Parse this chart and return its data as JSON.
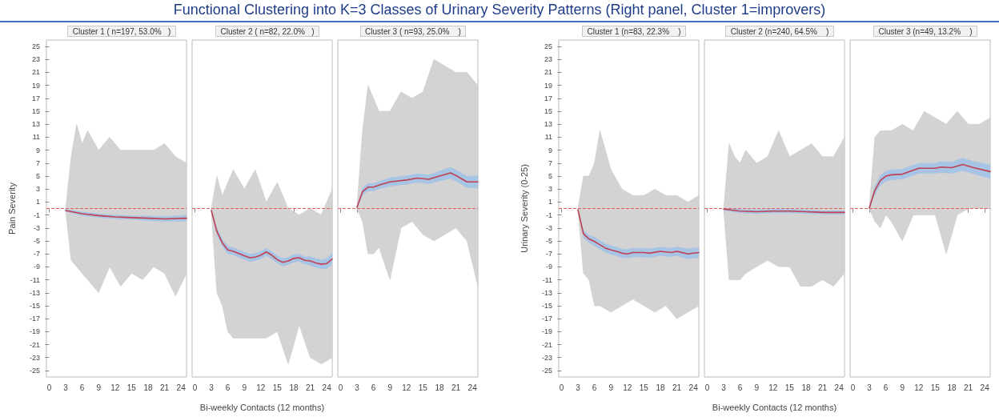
{
  "chart_data": [
    {
      "type": "line",
      "title": "Cluster 1 ( n=197, 53.0%   )",
      "ylabel": "Pain Severity",
      "annotations": [
        "Functional Clustering into K=3 Classes of Urinary Severity Patterns (Right panel, Cluster 1=improvers)"
      ],
      "xlim": [
        -0.5,
        25
      ],
      "xticks": [
        0,
        3,
        6,
        9,
        12,
        15,
        18,
        21,
        24
      ],
      "ylim": [
        -26,
        26
      ],
      "yticks": [
        -25,
        -23,
        -21,
        -19,
        -17,
        -15,
        -13,
        -11,
        -9,
        -7,
        -5,
        -3,
        -1,
        1,
        3,
        5,
        7,
        9,
        11,
        13,
        15,
        17,
        19,
        21,
        23,
        25
      ],
      "grid": false,
      "marker": "none",
      "line_style": "solid",
      "ref_lines": [
        {
          "axis": "y",
          "value": 0,
          "color": "#e06060",
          "line_style": "dashed"
        }
      ],
      "series": [
        {
          "color": "#d3d3d3",
          "x": [
            3,
            4,
            5,
            6,
            7,
            9,
            11,
            13,
            15,
            17,
            19,
            21,
            23,
            25
          ],
          "values": [
            null,
            null,
            null,
            null,
            null,
            null,
            null,
            null,
            null,
            null,
            null,
            null,
            null,
            null
          ],
          "lower": [
            -0.5,
            -8,
            -9,
            -10,
            -11,
            -13,
            -9,
            -12,
            -10,
            -11,
            -9,
            -10,
            -13.5,
            -10
          ],
          "upper": [
            0,
            8,
            13,
            10,
            12,
            9,
            11,
            9,
            9,
            9,
            9,
            10,
            8,
            7
          ]
        },
        {
          "color": "#c0404f",
          "x": [
            3,
            6,
            9,
            12,
            15,
            18,
            21,
            25
          ],
          "values": [
            -0.3,
            -0.8,
            -1.1,
            -1.3,
            -1.4,
            -1.5,
            -1.6,
            -1.5
          ],
          "lower": [
            -0.5,
            -1.1,
            -1.4,
            -1.6,
            -1.7,
            -1.9,
            -2.0,
            -2.0
          ],
          "upper": [
            -0.1,
            -0.5,
            -0.8,
            -1.0,
            -1.1,
            -1.1,
            -1.2,
            -1.0
          ]
        }
      ]
    },
    {
      "type": "line",
      "title": "Cluster 2 ( n=82, 22.0%   )",
      "xlabel": "Bi-weekly Contacts (12 months)",
      "tick_labels": "x",
      "xlim": [
        -0.5,
        25
      ],
      "xticks": [
        0,
        3,
        6,
        9,
        12,
        15,
        18,
        21,
        24
      ],
      "ylim": [
        -26,
        26
      ],
      "grid": false,
      "marker": "none",
      "line_style": "solid",
      "ref_lines": [
        {
          "axis": "y",
          "value": 0,
          "color": "#e06060",
          "line_style": "dashed"
        }
      ],
      "series": [
        {
          "color": "#d3d3d3",
          "x": [
            3,
            4,
            5,
            6,
            7,
            9,
            11,
            13,
            15,
            17,
            19,
            21,
            23,
            25
          ],
          "values": [
            null,
            null,
            null,
            null,
            null,
            null,
            null,
            null,
            null,
            null,
            null,
            null,
            null,
            null
          ],
          "lower": [
            -0.5,
            -13,
            -15,
            -19,
            -20,
            -20,
            -20,
            -20,
            -19,
            -24,
            -18,
            -23,
            -24,
            -23
          ],
          "upper": [
            0,
            5,
            2,
            4,
            6,
            3,
            6,
            1,
            4,
            0,
            -1,
            0,
            -1,
            3
          ]
        },
        {
          "color": "#c0404f",
          "x": [
            3,
            4,
            5,
            6,
            7,
            9,
            10,
            11,
            12,
            13,
            14,
            15,
            16,
            17,
            18,
            19,
            20,
            21,
            22,
            23,
            24,
            25
          ],
          "values": [
            -0.3,
            -3.5,
            -5.3,
            -6.4,
            -6.6,
            -7.3,
            -7.6,
            -7.5,
            -7.2,
            -6.7,
            -7.2,
            -7.9,
            -8.3,
            -8.1,
            -7.7,
            -7.6,
            -8.0,
            -8.1,
            -8.4,
            -8.6,
            -8.5,
            -7.8
          ],
          "lower": [
            -0.6,
            -4.1,
            -5.9,
            -7.0,
            -7.2,
            -7.9,
            -8.2,
            -8.1,
            -7.8,
            -7.3,
            -7.8,
            -8.5,
            -8.9,
            -8.7,
            -8.3,
            -8.2,
            -8.6,
            -8.8,
            -9.1,
            -9.3,
            -9.3,
            -8.7
          ],
          "upper": [
            0,
            -2.9,
            -4.7,
            -5.8,
            -6.0,
            -6.7,
            -7.0,
            -6.9,
            -6.6,
            -6.1,
            -6.6,
            -7.3,
            -7.7,
            -7.5,
            -7.1,
            -7.0,
            -7.4,
            -7.4,
            -7.7,
            -7.9,
            -7.7,
            -6.9
          ]
        }
      ]
    },
    {
      "type": "line",
      "title": "Cluster 3 ( n=93, 25.0%    )",
      "tick_labels": "x",
      "xlim": [
        -0.5,
        25
      ],
      "xticks": [
        0,
        3,
        6,
        9,
        12,
        15,
        18,
        21,
        24
      ],
      "ylim": [
        -26,
        26
      ],
      "grid": false,
      "marker": "none",
      "line_style": "solid",
      "ref_lines": [
        {
          "axis": "y",
          "value": 0,
          "color": "#e06060",
          "line_style": "dashed"
        }
      ],
      "series": [
        {
          "color": "#d3d3d3",
          "x": [
            3,
            4,
            5,
            6,
            7,
            9,
            11,
            13,
            15,
            17,
            19,
            21,
            23,
            25
          ],
          "values": [
            null,
            null,
            null,
            null,
            null,
            null,
            null,
            null,
            null,
            null,
            null,
            null,
            null,
            null
          ],
          "lower": [
            0,
            -2,
            -7,
            -7,
            -6,
            -11,
            -3,
            -2,
            -4,
            -5,
            -4,
            -3,
            -5,
            -12
          ],
          "upper": [
            0.5,
            12,
            19,
            17,
            15,
            15,
            18,
            17,
            18,
            23,
            22,
            21,
            21,
            19
          ]
        },
        {
          "color": "#c0404f",
          "x": [
            3,
            4,
            5,
            6,
            7,
            9,
            12,
            14,
            16,
            18,
            20,
            21,
            23,
            25
          ],
          "values": [
            0.2,
            2.6,
            3.3,
            3.3,
            3.6,
            4.1,
            4.4,
            4.7,
            4.5,
            5.0,
            5.5,
            5.1,
            4.1,
            4.1
          ],
          "lower": [
            0,
            2.0,
            2.7,
            2.7,
            3.0,
            3.4,
            3.7,
            4.0,
            3.8,
            4.2,
            4.6,
            4.2,
            3.2,
            3.1
          ],
          "upper": [
            0.4,
            3.2,
            3.9,
            3.9,
            4.2,
            4.8,
            5.1,
            5.4,
            5.2,
            5.8,
            6.4,
            6.0,
            5.0,
            5.1
          ]
        }
      ]
    },
    {
      "type": "line",
      "title": "Cluster 1 (n=83, 22.3%    )",
      "ylabel": "Urinary Severity (0-25)",
      "xlim": [
        -0.5,
        25
      ],
      "xticks": [
        0,
        3,
        6,
        9,
        12,
        15,
        18,
        21,
        24
      ],
      "ylim": [
        -26,
        26
      ],
      "yticks": [
        -25,
        -23,
        -21,
        -19,
        -17,
        -15,
        -13,
        -11,
        -9,
        -7,
        -5,
        -3,
        -1,
        1,
        3,
        5,
        7,
        9,
        11,
        13,
        15,
        17,
        19,
        21,
        23,
        25
      ],
      "grid": false,
      "marker": "none",
      "line_style": "solid",
      "ref_lines": [
        {
          "axis": "y",
          "value": 0,
          "color": "#e06060",
          "line_style": "dashed"
        }
      ],
      "series": [
        {
          "color": "#d3d3d3",
          "x": [
            3,
            4,
            5,
            6,
            7,
            9,
            11,
            13,
            15,
            17,
            19,
            21,
            23,
            25
          ],
          "values": [
            null,
            null,
            null,
            null,
            null,
            null,
            null,
            null,
            null,
            null,
            null,
            null,
            null,
            null
          ],
          "lower": [
            -0.3,
            -10,
            -11,
            -15,
            -15,
            -16,
            -15,
            -14,
            -15,
            -16,
            -15,
            -17,
            -16,
            -15
          ],
          "upper": [
            0,
            5,
            5,
            7,
            12,
            6,
            3,
            2,
            2,
            3,
            2,
            2,
            1,
            2
          ]
        },
        {
          "color": "#c0404f",
          "x": [
            3,
            4,
            5,
            6,
            7,
            8,
            9,
            10,
            11,
            12,
            13,
            15,
            16,
            18,
            20,
            21,
            23,
            25
          ],
          "values": [
            -0.2,
            -3.9,
            -4.7,
            -5.1,
            -5.6,
            -6.1,
            -6.4,
            -6.6,
            -6.9,
            -7.0,
            -6.8,
            -6.8,
            -6.9,
            -6.6,
            -6.8,
            -6.6,
            -7.0,
            -6.8
          ],
          "lower": [
            -0.4,
            -4.5,
            -5.3,
            -5.8,
            -6.3,
            -6.8,
            -7.1,
            -7.3,
            -7.6,
            -7.7,
            -7.5,
            -7.5,
            -7.6,
            -7.3,
            -7.5,
            -7.3,
            -7.8,
            -7.6
          ],
          "upper": [
            0,
            -3.3,
            -4.1,
            -4.4,
            -4.9,
            -5.4,
            -5.7,
            -5.9,
            -6.2,
            -6.3,
            -6.1,
            -6.1,
            -6.2,
            -5.9,
            -6.1,
            -5.9,
            -6.2,
            -6.0
          ]
        }
      ]
    },
    {
      "type": "line",
      "title": "Cluster 2 (n=240, 64.5%    )",
      "xlabel": "Bi-weekly Contacts (12 months)",
      "tick_labels": "x",
      "xlim": [
        -0.5,
        25
      ],
      "xticks": [
        0,
        3,
        6,
        9,
        12,
        15,
        18,
        21,
        24
      ],
      "ylim": [
        -26,
        26
      ],
      "grid": false,
      "marker": "none",
      "line_style": "solid",
      "ref_lines": [
        {
          "axis": "y",
          "value": 0,
          "color": "#e06060",
          "line_style": "dashed"
        }
      ],
      "series": [
        {
          "color": "#d3d3d3",
          "x": [
            3,
            4,
            5,
            6,
            7,
            9,
            11,
            13,
            15,
            17,
            19,
            21,
            23,
            25
          ],
          "values": [
            null,
            null,
            null,
            null,
            null,
            null,
            null,
            null,
            null,
            null,
            null,
            null,
            null,
            null
          ],
          "lower": [
            -0.3,
            -11,
            -11,
            -11,
            -10,
            -9,
            -8,
            -9,
            -9,
            -12,
            -12,
            -11,
            -12,
            -10
          ],
          "upper": [
            0,
            10,
            8,
            7,
            9,
            7,
            8,
            12,
            8,
            9,
            10,
            8,
            8,
            11
          ]
        },
        {
          "color": "#c0404f",
          "x": [
            3,
            6,
            9,
            12,
            15,
            18,
            21,
            25
          ],
          "values": [
            -0.1,
            -0.4,
            -0.5,
            -0.4,
            -0.4,
            -0.5,
            -0.6,
            -0.6
          ],
          "lower": [
            -0.3,
            -0.7,
            -0.8,
            -0.7,
            -0.7,
            -0.8,
            -0.9,
            -0.9
          ],
          "upper": [
            0.1,
            -0.1,
            -0.2,
            -0.1,
            -0.1,
            -0.2,
            -0.3,
            -0.3
          ]
        }
      ]
    },
    {
      "type": "line",
      "title": "Cluster 3 (n=49, 13.2%    )",
      "tick_labels": "x",
      "xlim": [
        -0.5,
        25
      ],
      "xticks": [
        0,
        3,
        6,
        9,
        12,
        15,
        18,
        21,
        24
      ],
      "ylim": [
        -26,
        26
      ],
      "grid": false,
      "marker": "none",
      "line_style": "solid",
      "ref_lines": [
        {
          "axis": "y",
          "value": 0,
          "color": "#e06060",
          "line_style": "dashed"
        }
      ],
      "series": [
        {
          "color": "#d3d3d3",
          "x": [
            3,
            4,
            5,
            6,
            7,
            9,
            11,
            13,
            15,
            17,
            19,
            21,
            23,
            25
          ],
          "values": [
            null,
            null,
            null,
            null,
            null,
            null,
            null,
            null,
            null,
            null,
            null,
            null,
            null,
            null
          ],
          "lower": [
            0,
            -2,
            -3,
            -1,
            -2,
            -5,
            -1,
            -1,
            -1,
            -7,
            -1,
            0,
            0,
            0
          ],
          "upper": [
            0.3,
            11,
            12,
            12,
            12,
            13,
            12,
            15,
            14,
            13,
            15,
            13,
            13,
            14
          ]
        },
        {
          "color": "#c0404f",
          "x": [
            3,
            4,
            5,
            6,
            7,
            9,
            12,
            15,
            16,
            18,
            20,
            22,
            25
          ],
          "values": [
            0.1,
            2.8,
            4.3,
            5.0,
            5.2,
            5.3,
            6.2,
            6.2,
            6.4,
            6.3,
            6.8,
            6.3,
            5.7
          ],
          "lower": [
            0,
            2.1,
            3.5,
            4.2,
            4.4,
            4.5,
            5.4,
            5.4,
            5.5,
            5.4,
            5.8,
            5.3,
            4.6
          ],
          "upper": [
            0.3,
            3.5,
            5.1,
            5.8,
            6.0,
            6.1,
            7.0,
            7.0,
            7.3,
            7.2,
            7.8,
            7.3,
            6.8
          ]
        }
      ]
    }
  ]
}
